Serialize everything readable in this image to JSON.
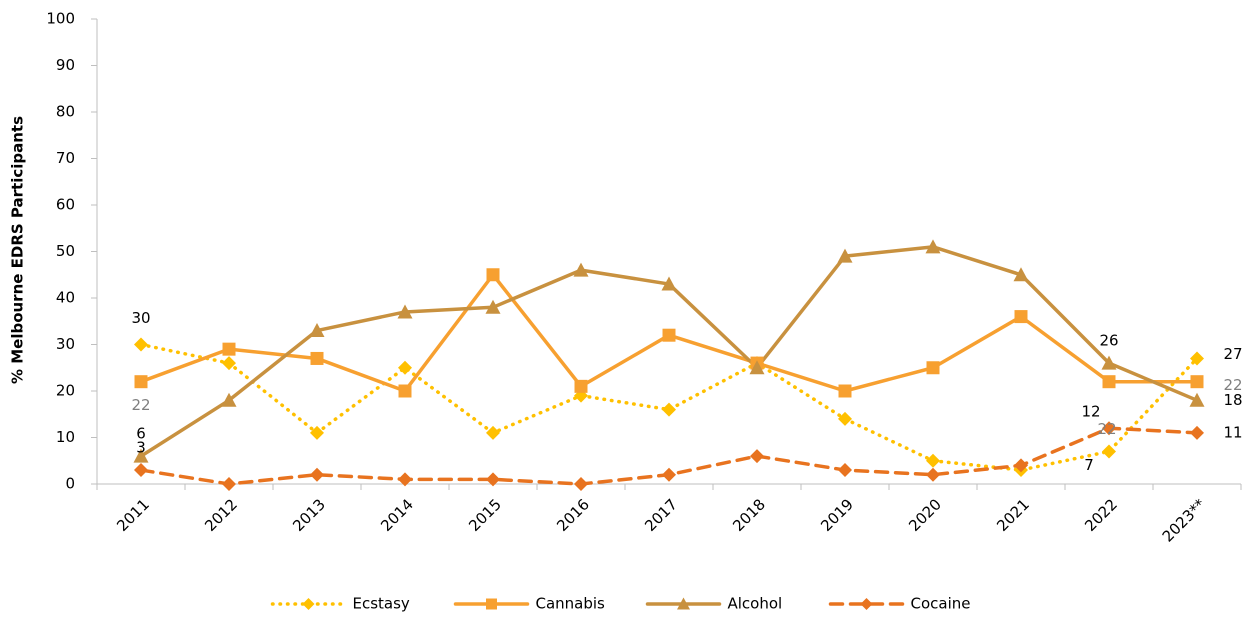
{
  "chart_data": {
    "type": "line",
    "ylabel": "% Melbourne EDRS Participants",
    "categories": [
      "2011",
      "2012",
      "2013",
      "2014",
      "2015",
      "2016",
      "2017",
      "2018",
      "2019",
      "2020",
      "2021",
      "2022",
      "2023**"
    ],
    "series": [
      {
        "name": "Ecstasy",
        "color": "#ffc000",
        "marker": "diamond",
        "line": "dotted",
        "values": [
          30,
          26,
          11,
          25,
          11,
          19,
          16,
          26,
          14,
          5,
          3,
          7,
          27
        ]
      },
      {
        "name": "Cannabis",
        "color": "#f7a030",
        "marker": "square",
        "line": "solid",
        "values": [
          22,
          29,
          27,
          20,
          45,
          21,
          32,
          26,
          20,
          25,
          36,
          22,
          22
        ]
      },
      {
        "name": "Alcohol",
        "color": "#c8913f",
        "marker": "triangle",
        "line": "solid",
        "values": [
          6,
          18,
          33,
          37,
          38,
          46,
          43,
          25,
          49,
          51,
          45,
          26,
          18
        ]
      },
      {
        "name": "Cocaine",
        "color": "#e8731f",
        "marker": "diamond",
        "line": "dashed",
        "values": [
          3,
          0,
          2,
          1,
          1,
          0,
          2,
          6,
          3,
          2,
          4,
          12,
          11
        ]
      }
    ],
    "labeled_indices": [
      0,
      11,
      12
    ],
    "ylim": [
      0,
      100
    ],
    "yticks": [
      0,
      10,
      20,
      30,
      40,
      50,
      60,
      70,
      80,
      90,
      100
    ],
    "grid": false,
    "legend": "bottom"
  }
}
